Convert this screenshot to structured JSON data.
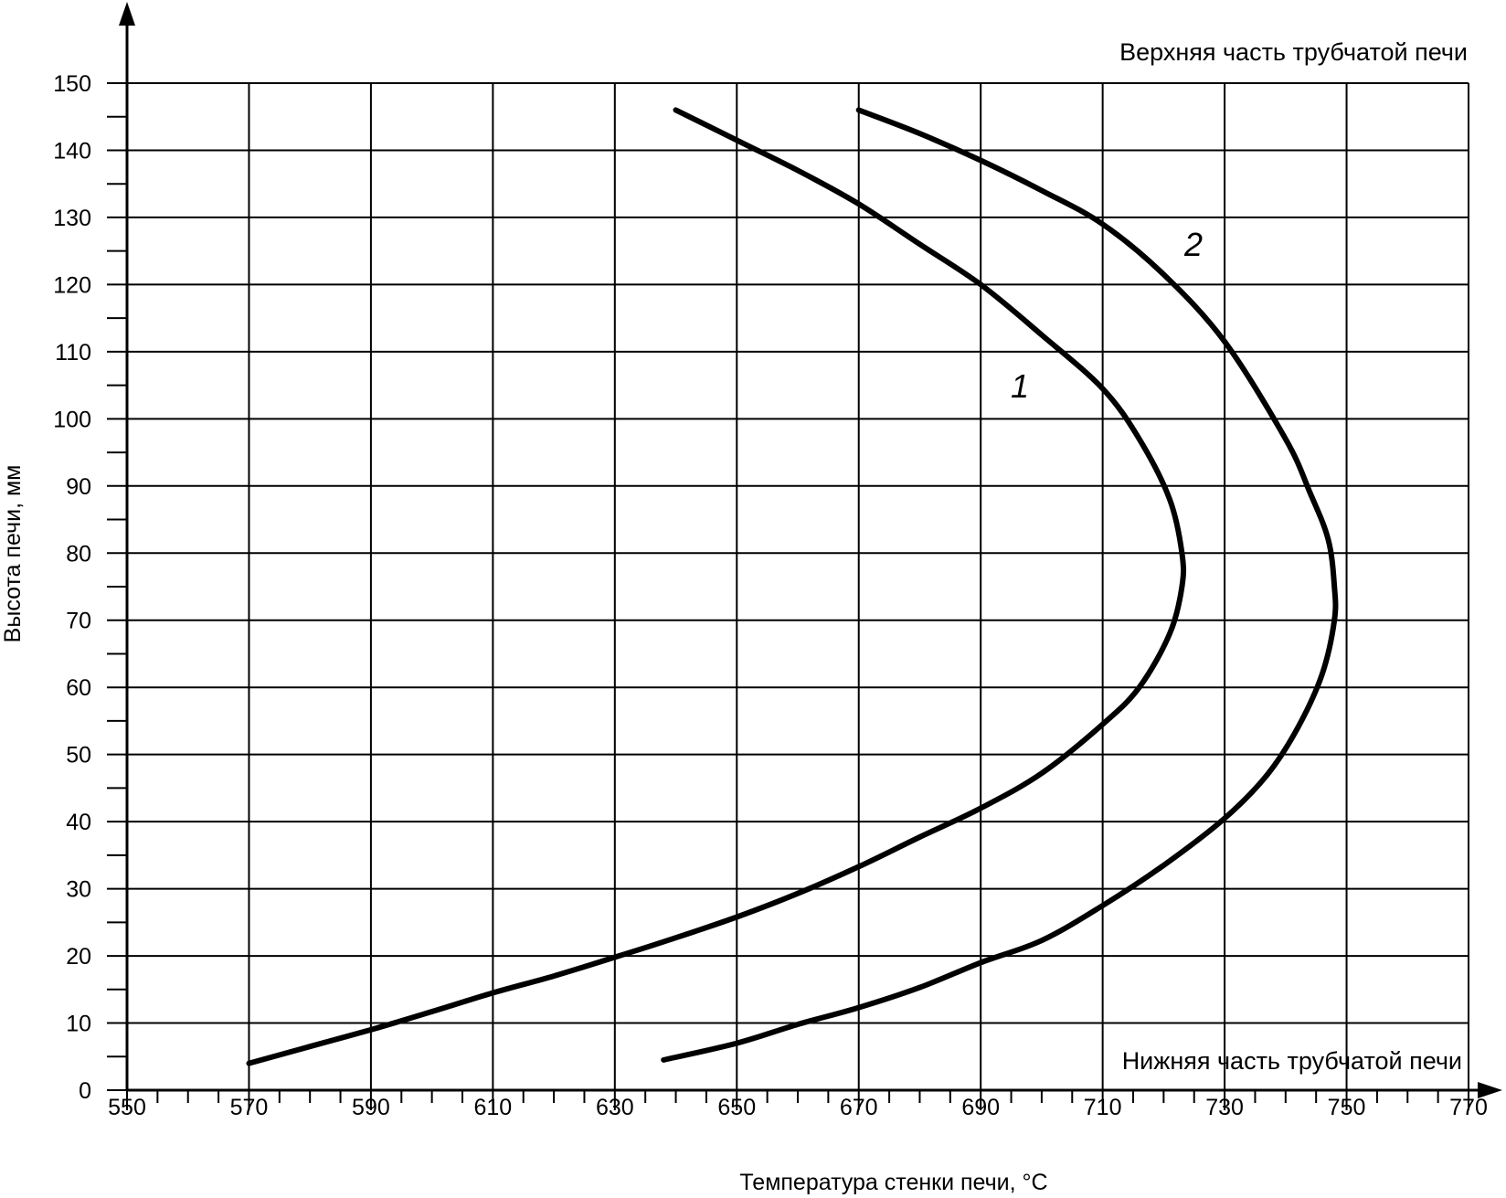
{
  "chart_data": {
    "type": "line",
    "xlabel": "Температура стенки печи, °С",
    "ylabel": "Высота печи, мм",
    "xlim": [
      550,
      770
    ],
    "ylim": [
      0,
      150
    ],
    "x_ticks": [
      550,
      570,
      590,
      610,
      630,
      650,
      670,
      690,
      710,
      730,
      750,
      770
    ],
    "y_ticks": [
      0,
      10,
      20,
      30,
      40,
      50,
      60,
      70,
      80,
      90,
      100,
      110,
      120,
      130,
      140,
      150
    ],
    "grid": true,
    "annotations": {
      "top": "Верхняя часть трубчатой печи",
      "bottom": "Нижняя часть трубчатой печи"
    },
    "series": [
      {
        "name": "1",
        "points": [
          [
            570,
            4
          ],
          [
            580,
            6.5
          ],
          [
            590,
            9
          ],
          [
            600,
            11.7
          ],
          [
            610,
            14.5
          ],
          [
            620,
            17
          ],
          [
            630,
            19.8
          ],
          [
            640,
            22.7
          ],
          [
            650,
            25.8
          ],
          [
            660,
            29.3
          ],
          [
            670,
            33.3
          ],
          [
            680,
            37.7
          ],
          [
            690,
            42
          ],
          [
            700,
            47.2
          ],
          [
            710,
            54.5
          ],
          [
            716,
            60
          ],
          [
            721,
            68
          ],
          [
            723,
            75
          ],
          [
            723,
            80
          ],
          [
            721,
            88
          ],
          [
            716,
            97
          ],
          [
            710,
            104.5
          ],
          [
            700,
            112.5
          ],
          [
            690,
            120
          ],
          [
            680,
            126
          ],
          [
            670,
            132
          ],
          [
            660,
            137
          ],
          [
            650,
            141.5
          ],
          [
            640,
            146
          ]
        ]
      },
      {
        "name": "2",
        "points": [
          [
            638,
            4.5
          ],
          [
            650,
            7
          ],
          [
            660,
            9.8
          ],
          [
            670,
            12.3
          ],
          [
            680,
            15.3
          ],
          [
            690,
            19
          ],
          [
            700,
            22.3
          ],
          [
            710,
            27.5
          ],
          [
            720,
            33.5
          ],
          [
            730,
            40.5
          ],
          [
            737,
            47
          ],
          [
            742,
            54
          ],
          [
            746,
            62
          ],
          [
            748,
            70
          ],
          [
            748,
            75
          ],
          [
            747,
            82
          ],
          [
            744,
            89
          ],
          [
            740,
            97
          ],
          [
            730,
            111.5
          ],
          [
            720,
            121.5
          ],
          [
            710,
            129
          ],
          [
            700,
            134
          ],
          [
            690,
            138.5
          ],
          [
            680,
            142.5
          ],
          [
            670,
            146
          ]
        ]
      }
    ]
  }
}
